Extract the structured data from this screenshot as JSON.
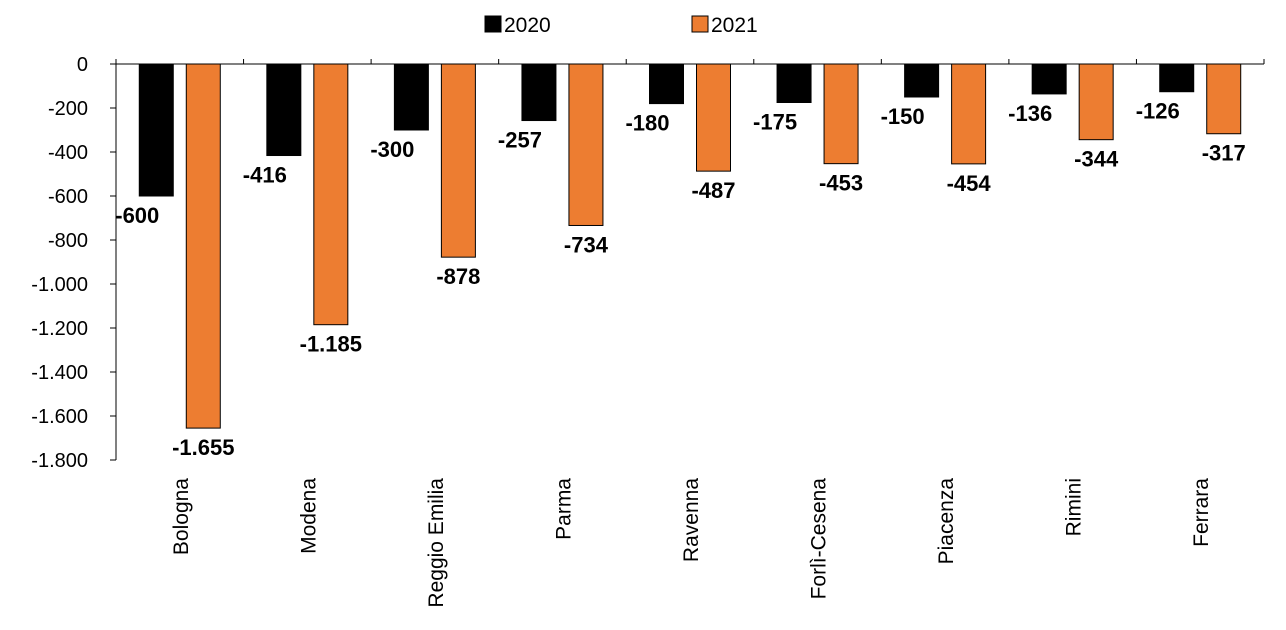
{
  "chart_data": {
    "type": "bar",
    "categories": [
      "Bologna",
      "Modena",
      "Reggio Emilia",
      "Parma",
      "Ravenna",
      "Forlì-Cesena",
      "Piacenza",
      "Rimini",
      "Ferrara"
    ],
    "series": [
      {
        "name": "2020",
        "color": "#000000",
        "values": [
          -600,
          -416,
          -300,
          -257,
          -180,
          -175,
          -150,
          -136,
          -126
        ],
        "labels": [
          "-600",
          "-416",
          "-300",
          "-257",
          "-180",
          "-175",
          "-150",
          "-136",
          "-126"
        ]
      },
      {
        "name": "2021",
        "color": "#ED7D31",
        "values": [
          -1655,
          -1185,
          -878,
          -734,
          -487,
          -453,
          -454,
          -344,
          -317
        ],
        "labels": [
          "-1.655",
          "-1.185",
          "-878",
          "-734",
          "-487",
          "-453",
          "-454",
          "-344",
          "-317"
        ]
      }
    ],
    "ylim": [
      -1800,
      0
    ],
    "yticks": [
      0,
      -200,
      -400,
      -600,
      -800,
      -1000,
      -1200,
      -1400,
      -1600,
      -1800
    ],
    "ytick_labels": [
      "0",
      "-200",
      "-400",
      "-600",
      "-800",
      "-1.000",
      "-1.200",
      "-1.400",
      "-1.600",
      "-1.800"
    ],
    "legend_position": "top-center",
    "grid": false,
    "title": "",
    "xlabel": "",
    "ylabel": ""
  }
}
